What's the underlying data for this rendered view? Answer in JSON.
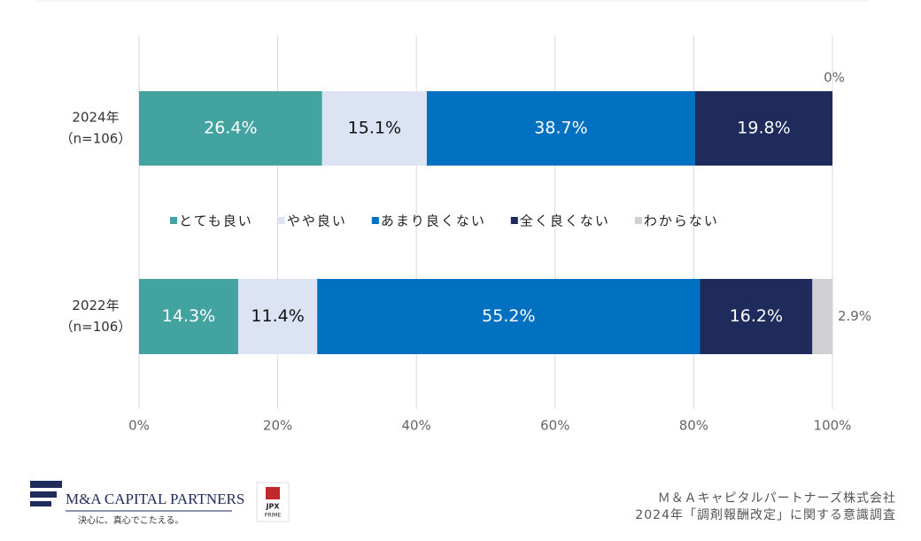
{
  "chart_data": {
    "type": "stacked_bar_horizontal",
    "categories": [
      "2024年",
      "2022年"
    ],
    "category_notes": [
      "（n=106）",
      "（n=106）"
    ],
    "series": [
      {
        "name": "とても良い",
        "color": "#43a3a0",
        "values": [
          26.4,
          14.3
        ],
        "value_labels": [
          "26.4%",
          "14.3%"
        ]
      },
      {
        "name": "やや良い",
        "color": "#dce3f2",
        "values": [
          15.1,
          11.4
        ],
        "value_labels": [
          "15.1%",
          "11.4%"
        ]
      },
      {
        "name": "あまり良くない",
        "color": "#0070c0",
        "values": [
          38.7,
          55.2
        ],
        "value_labels": [
          "38.7%",
          "55.2%"
        ]
      },
      {
        "name": "全く良くない",
        "color": "#1f2b5b",
        "values": [
          19.8,
          16.2
        ],
        "value_labels": [
          "19.8%",
          "16.2%"
        ]
      },
      {
        "name": "わからない",
        "color": "#d0d0d4",
        "values": [
          0,
          2.9
        ],
        "value_labels": [
          "0%",
          "2.9%"
        ]
      }
    ],
    "xlim": [
      0,
      100
    ],
    "xticks": [
      {
        "value": 0,
        "label": "0%"
      },
      {
        "value": 20,
        "label": "20%"
      },
      {
        "value": 40,
        "label": "40%"
      },
      {
        "value": 60,
        "label": "60%"
      },
      {
        "value": 80,
        "label": "80%"
      },
      {
        "value": 100,
        "label": "100%"
      }
    ],
    "grid": true
  },
  "footer": {
    "logo": "M&A CAPITAL PARTNERS",
    "tagline": "決心に、真心でこたえる。",
    "badge": "JPX",
    "badge_sub": "PRIME",
    "source": [
      "Ｍ＆Ａキャピタルパートナーズ株式会社",
      "2024年「調剤報酬改定」に関する意識調査"
    ]
  }
}
